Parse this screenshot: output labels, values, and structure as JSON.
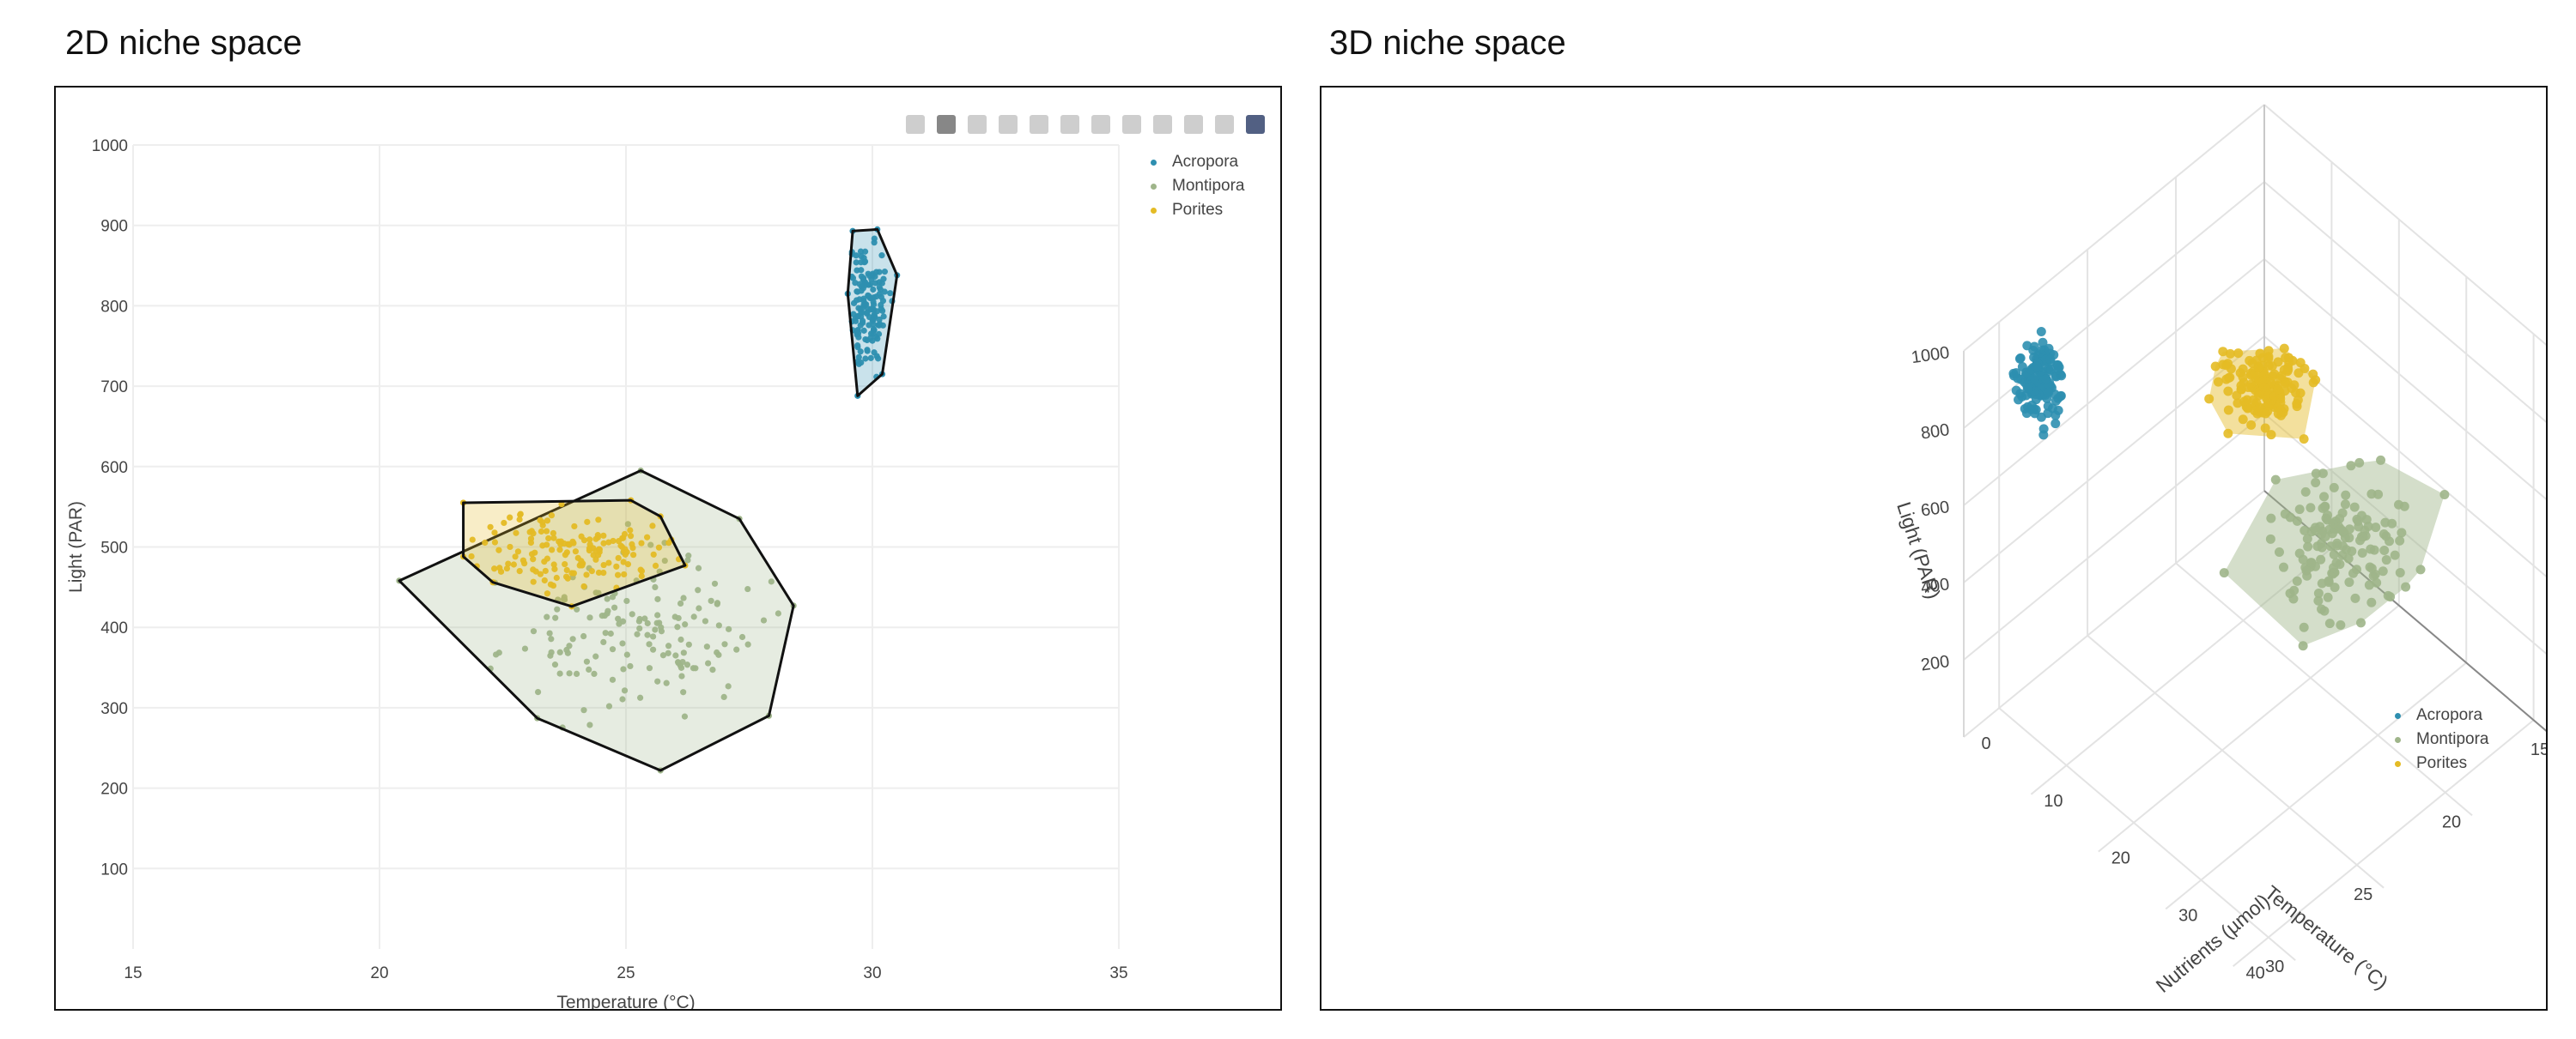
{
  "panels": {
    "left_title": "2D niche space",
    "right_title": "3D niche space"
  },
  "toolbar": {
    "icons": [
      "camera-icon",
      "zoom-icon",
      "pan-icon",
      "box-select-icon",
      "lasso-icon",
      "zoom-in-icon",
      "zoom-out-icon",
      "autoscale-icon",
      "home-icon",
      "spike-lines-icon",
      "compare-icon",
      "plotly-logo-icon"
    ]
  },
  "legend": {
    "items": [
      {
        "name": "Acropora",
        "color": "#2e8fb0"
      },
      {
        "name": "Montipora",
        "color": "#9fb58a"
      },
      {
        "name": "Porites",
        "color": "#e4bb25"
      }
    ]
  },
  "chart_data": [
    {
      "type": "scatter",
      "title": "2D niche space",
      "xlabel": "Temperature (°C)",
      "ylabel": "Light (PAR)",
      "xlim": [
        15,
        35
      ],
      "ylim": [
        0,
        1000
      ],
      "xticks": [
        15,
        20,
        25,
        30,
        35
      ],
      "yticks": [
        100,
        200,
        300,
        400,
        500,
        600,
        700,
        800,
        900,
        1000
      ],
      "grid": true,
      "legend_position": "top-right",
      "series": [
        {
          "name": "Acropora",
          "color": "#2e8fb0",
          "center": [
            29.9,
            800
          ],
          "spread": [
            0.22,
            42
          ],
          "n": 150,
          "hull": [
            [
              29.7,
              688
            ],
            [
              30.2,
              715
            ],
            [
              30.5,
              838
            ],
            [
              30.1,
              895
            ],
            [
              29.6,
              893
            ],
            [
              29.5,
              815
            ]
          ]
        },
        {
          "name": "Montipora",
          "color": "#9fb58a",
          "center": [
            25.1,
            390
          ],
          "spread": [
            1.3,
            45
          ],
          "n": 150,
          "hull": [
            [
              25.7,
              222
            ],
            [
              27.9,
              290
            ],
            [
              28.4,
              427
            ],
            [
              27.3,
              535
            ],
            [
              25.3,
              595
            ],
            [
              20.4,
              458
            ],
            [
              23.2,
              287
            ]
          ]
        },
        {
          "name": "Porites",
          "color": "#e4bb25",
          "center": [
            23.9,
            495
          ],
          "spread": [
            0.95,
            24
          ],
          "n": 150,
          "hull": [
            [
              21.7,
              555
            ],
            [
              25.1,
              558
            ],
            [
              25.7,
              538
            ],
            [
              26.2,
              477
            ],
            [
              23.9,
              426
            ],
            [
              22.3,
              456
            ],
            [
              21.7,
              488
            ]
          ]
        }
      ]
    },
    {
      "type": "scatter",
      "title": "3D niche space",
      "xlabel": "Temperature (°C)",
      "ylabel": "Nutrients (µmol)",
      "zlabel": "Light (PAR)",
      "xlim": [
        15,
        32
      ],
      "ylim": [
        0,
        44
      ],
      "zlim": [
        0,
        1000
      ],
      "xticks": [
        15,
        20,
        25,
        30
      ],
      "yticks": [
        0,
        10,
        20,
        30,
        40
      ],
      "zticks": [
        200,
        400,
        600,
        800,
        1000
      ],
      "legend_position": "right",
      "series": [
        {
          "name": "Acropora",
          "color": "#2e8fb0",
          "center": [
            28.5,
            2,
            820
          ],
          "spread": [
            0.5,
            1.2,
            45
          ],
          "n": 150
        },
        {
          "name": "Montipora",
          "color": "#9fb58a",
          "center": [
            18.5,
            20,
            300
          ],
          "spread": [
            1.5,
            3.5,
            60
          ],
          "n": 150
        },
        {
          "name": "Porites",
          "color": "#e4bb25",
          "center": [
            18,
            8,
            500
          ],
          "spread": [
            0.9,
            2.2,
            25
          ],
          "n": 150
        }
      ]
    }
  ]
}
